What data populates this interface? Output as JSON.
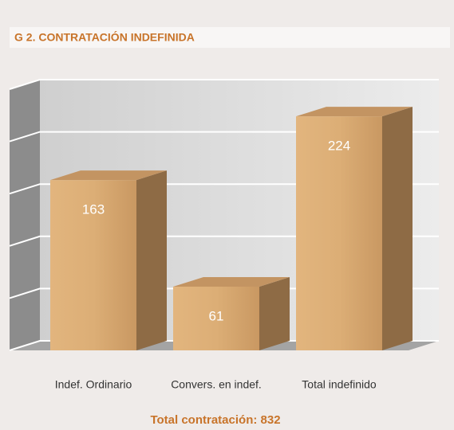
{
  "chart_data": {
    "type": "bar3d",
    "title": "G 2. CONTRATACIÓN INDEFINIDA",
    "categories": [
      "Indef. Ordinario",
      "Convers. en indef.",
      "Total indefinido"
    ],
    "values": [
      163,
      61,
      224
    ],
    "color": "#d9aa72",
    "ylim": [
      0,
      250
    ],
    "yticks": [
      0,
      50,
      100,
      150,
      200,
      250
    ],
    "grid": true,
    "footer": "Total contratación: 832"
  }
}
